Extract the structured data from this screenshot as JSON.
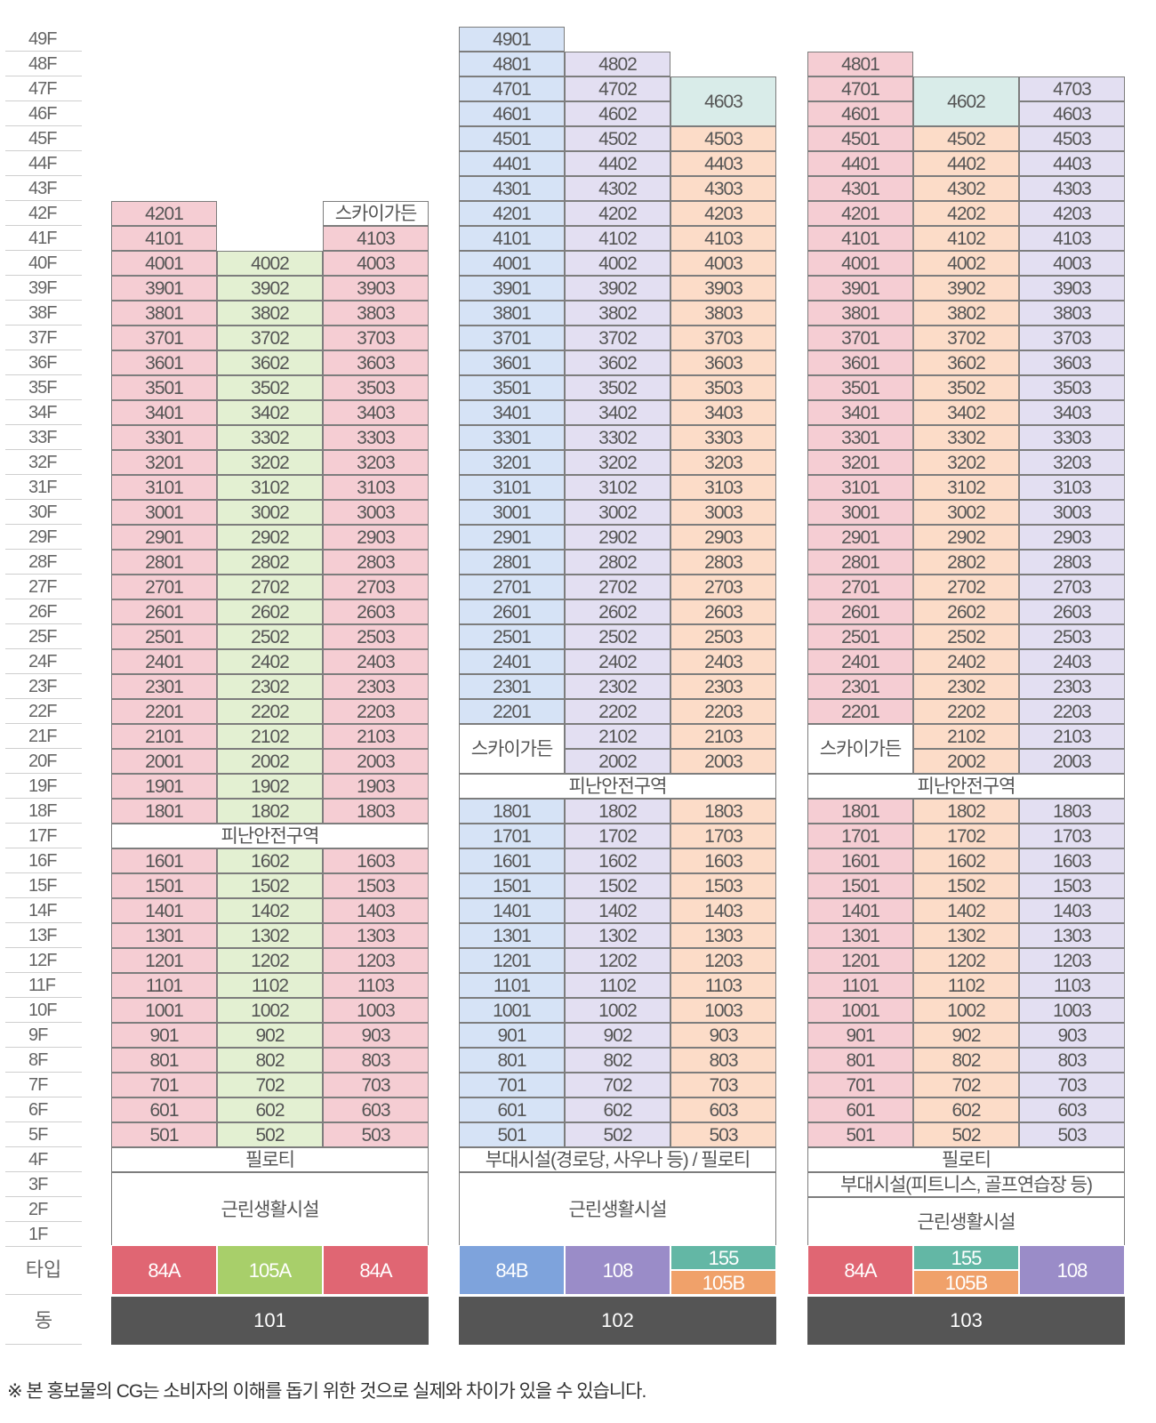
{
  "colors": {
    "pink": "#f5cdd3",
    "green": "#e3f0d2",
    "blue": "#d6e3f6",
    "purple": "#e3dff2",
    "peach": "#fcdcc8",
    "teal": "#d9ece9",
    "white": "#ffffff",
    "type_84A": "#e06673",
    "type_105A": "#a8cf6a",
    "type_84B": "#7ea3dc",
    "type_108": "#9a8cc8",
    "type_155": "#63b7a5",
    "type_105B": "#f0a16a",
    "dong_bg": "#555555"
  },
  "labels": {
    "type_row": "타입",
    "dong_row": "동",
    "footnote": "※ 본 홍보물의 CG는 소비자의 이해를 돕기 위한 것으로 실제와 차이가 있을 수 있습니다."
  },
  "floor_labels": [
    "49F",
    "48F",
    "47F",
    "46F",
    "45F",
    "44F",
    "43F",
    "42F",
    "41F",
    "40F",
    "39F",
    "38F",
    "37F",
    "36F",
    "35F",
    "34F",
    "33F",
    "32F",
    "31F",
    "30F",
    "29F",
    "28F",
    "27F",
    "26F",
    "25F",
    "24F",
    "23F",
    "22F",
    "21F",
    "20F",
    "19F",
    "18F",
    "17F",
    "16F",
    "15F",
    "14F",
    "13F",
    "12F",
    "11F",
    "10F",
    "9F",
    "8F",
    "7F",
    "6F",
    "5F",
    "4F",
    "3F",
    "2F",
    "1F"
  ],
  "buildings": [
    {
      "dong": "101",
      "types": [
        {
          "label": "84A",
          "color": "type_84A"
        },
        {
          "label": "105A",
          "color": "type_105A"
        },
        {
          "label": "84A",
          "color": "type_84A"
        }
      ],
      "columns": [
        {
          "color": "pink",
          "floors": [
            [
              5,
              16
            ],
            [
              18,
              42
            ]
          ],
          "unit_suffix": "01"
        },
        {
          "color": "green",
          "floors": [
            [
              5,
              16
            ],
            [
              18,
              40
            ]
          ],
          "unit_suffix": "02"
        },
        {
          "color": "pink",
          "floors": [
            [
              5,
              16
            ],
            [
              18,
              41
            ]
          ],
          "unit_suffix": "03"
        }
      ],
      "specials": [
        {
          "text": "스카이가든",
          "col_start": 2,
          "col_span": 1,
          "floor_top": 42,
          "floor_bottom": 42,
          "color": "white"
        },
        {
          "text": "피난안전구역",
          "col_start": 0,
          "col_span": 3,
          "floor_top": 17,
          "floor_bottom": 17,
          "color": "white"
        },
        {
          "text": "필로티",
          "col_start": 0,
          "col_span": 3,
          "floor_top": 4,
          "floor_bottom": 4,
          "color": "white"
        },
        {
          "text": "근린생활시설",
          "col_start": 0,
          "col_span": 3,
          "floor_top": 3,
          "floor_bottom": 1,
          "color": "white"
        }
      ]
    },
    {
      "dong": "102",
      "types": [
        {
          "label": "84B",
          "color": "type_84B"
        },
        {
          "label": "108",
          "color": "type_108"
        },
        {
          "label": "155",
          "color": "type_155",
          "split": "top"
        },
        {
          "label": "105B",
          "color": "type_105B",
          "split": "bottom"
        }
      ],
      "columns": [
        {
          "color": "blue",
          "floors": [
            [
              5,
              18
            ],
            [
              22,
              49
            ]
          ],
          "unit_suffix": "01"
        },
        {
          "color": "purple",
          "floors": [
            [
              5,
              18
            ],
            [
              20,
              48
            ]
          ],
          "unit_suffix": "02"
        },
        {
          "color": "peach",
          "floors": [
            [
              5,
              18
            ],
            [
              20,
              45
            ]
          ],
          "unit_suffix": "03"
        }
      ],
      "specials": [
        {
          "text": "4603",
          "col_start": 2,
          "col_span": 1,
          "floor_top": 47,
          "floor_bottom": 46,
          "color": "teal"
        },
        {
          "text": "스카이가든",
          "col_start": 0,
          "col_span": 1,
          "floor_top": 21,
          "floor_bottom": 20,
          "color": "white"
        },
        {
          "text": "피난안전구역",
          "col_start": 0,
          "col_span": 3,
          "floor_top": 19,
          "floor_bottom": 19,
          "color": "white"
        },
        {
          "text": "부대시설(경로당, 사우나 등) / 필로티",
          "col_start": 0,
          "col_span": 3,
          "floor_top": 4,
          "floor_bottom": 4,
          "color": "white"
        },
        {
          "text": "근린생활시설",
          "col_start": 0,
          "col_span": 3,
          "floor_top": 3,
          "floor_bottom": 1,
          "color": "white"
        }
      ]
    },
    {
      "dong": "103",
      "types": [
        {
          "label": "84A",
          "color": "type_84A"
        },
        {
          "label": "155",
          "color": "type_155",
          "split": "top"
        },
        {
          "label": "105B",
          "color": "type_105B",
          "split": "bottom"
        },
        {
          "label": "108",
          "color": "type_108"
        }
      ],
      "columns": [
        {
          "color": "pink",
          "floors": [
            [
              5,
              18
            ],
            [
              22,
              48
            ]
          ],
          "unit_suffix": "01"
        },
        {
          "color": "peach",
          "floors": [
            [
              5,
              18
            ],
            [
              20,
              45
            ]
          ],
          "unit_suffix": "02"
        },
        {
          "color": "purple",
          "floors": [
            [
              5,
              18
            ],
            [
              20,
              47
            ]
          ],
          "unit_suffix": "03"
        }
      ],
      "specials": [
        {
          "text": "4602",
          "col_start": 1,
          "col_span": 1,
          "floor_top": 47,
          "floor_bottom": 46,
          "color": "teal"
        },
        {
          "text": "스카이가든",
          "col_start": 0,
          "col_span": 1,
          "floor_top": 21,
          "floor_bottom": 20,
          "color": "white"
        },
        {
          "text": "피난안전구역",
          "col_start": 0,
          "col_span": 3,
          "floor_top": 19,
          "floor_bottom": 19,
          "color": "white"
        },
        {
          "text": "필로티",
          "col_start": 0,
          "col_span": 3,
          "floor_top": 4,
          "floor_bottom": 4,
          "color": "white"
        },
        {
          "text": "부대시설(피트니스, 골프연습장 등)",
          "col_start": 0,
          "col_span": 3,
          "floor_top": 3,
          "floor_bottom": 3,
          "color": "white"
        },
        {
          "text": "근린생활시설",
          "col_start": 0,
          "col_span": 3,
          "floor_top": 2,
          "floor_bottom": 1,
          "color": "white"
        }
      ]
    }
  ]
}
